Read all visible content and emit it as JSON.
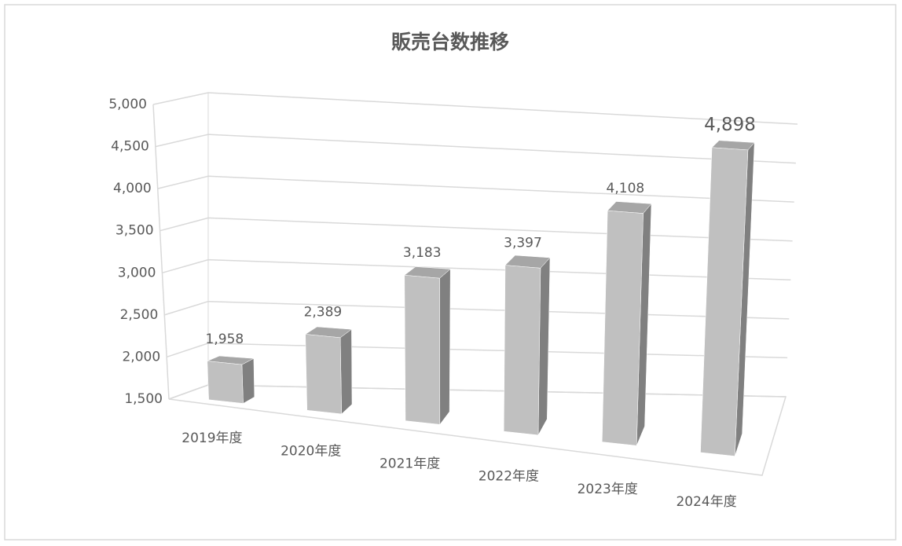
{
  "chart_data": {
    "type": "bar3d",
    "title": "販売台数推移",
    "categories": [
      "2019年度",
      "2020年度",
      "2021年度",
      "2022年度",
      "2023年度",
      "2024年度"
    ],
    "values": [
      1958,
      2389,
      3183,
      3397,
      4108,
      4898
    ],
    "value_labels": [
      "1,958",
      "2,389",
      "3,183",
      "3,397",
      "4,108",
      "4,898"
    ],
    "color": "#c0c0c0",
    "ylim": [
      1500,
      5000
    ],
    "yticks": [
      {
        "value": 1500,
        "label": "1,500"
      },
      {
        "value": 2000,
        "label": "2,000"
      },
      {
        "value": 2500,
        "label": "2,500"
      },
      {
        "value": 3000,
        "label": "3,000"
      },
      {
        "value": 3500,
        "label": "3,500"
      },
      {
        "value": 4000,
        "label": "4,000"
      },
      {
        "value": 4500,
        "label": "4,500"
      },
      {
        "value": 5000,
        "label": "5,000"
      }
    ],
    "grid": true
  }
}
